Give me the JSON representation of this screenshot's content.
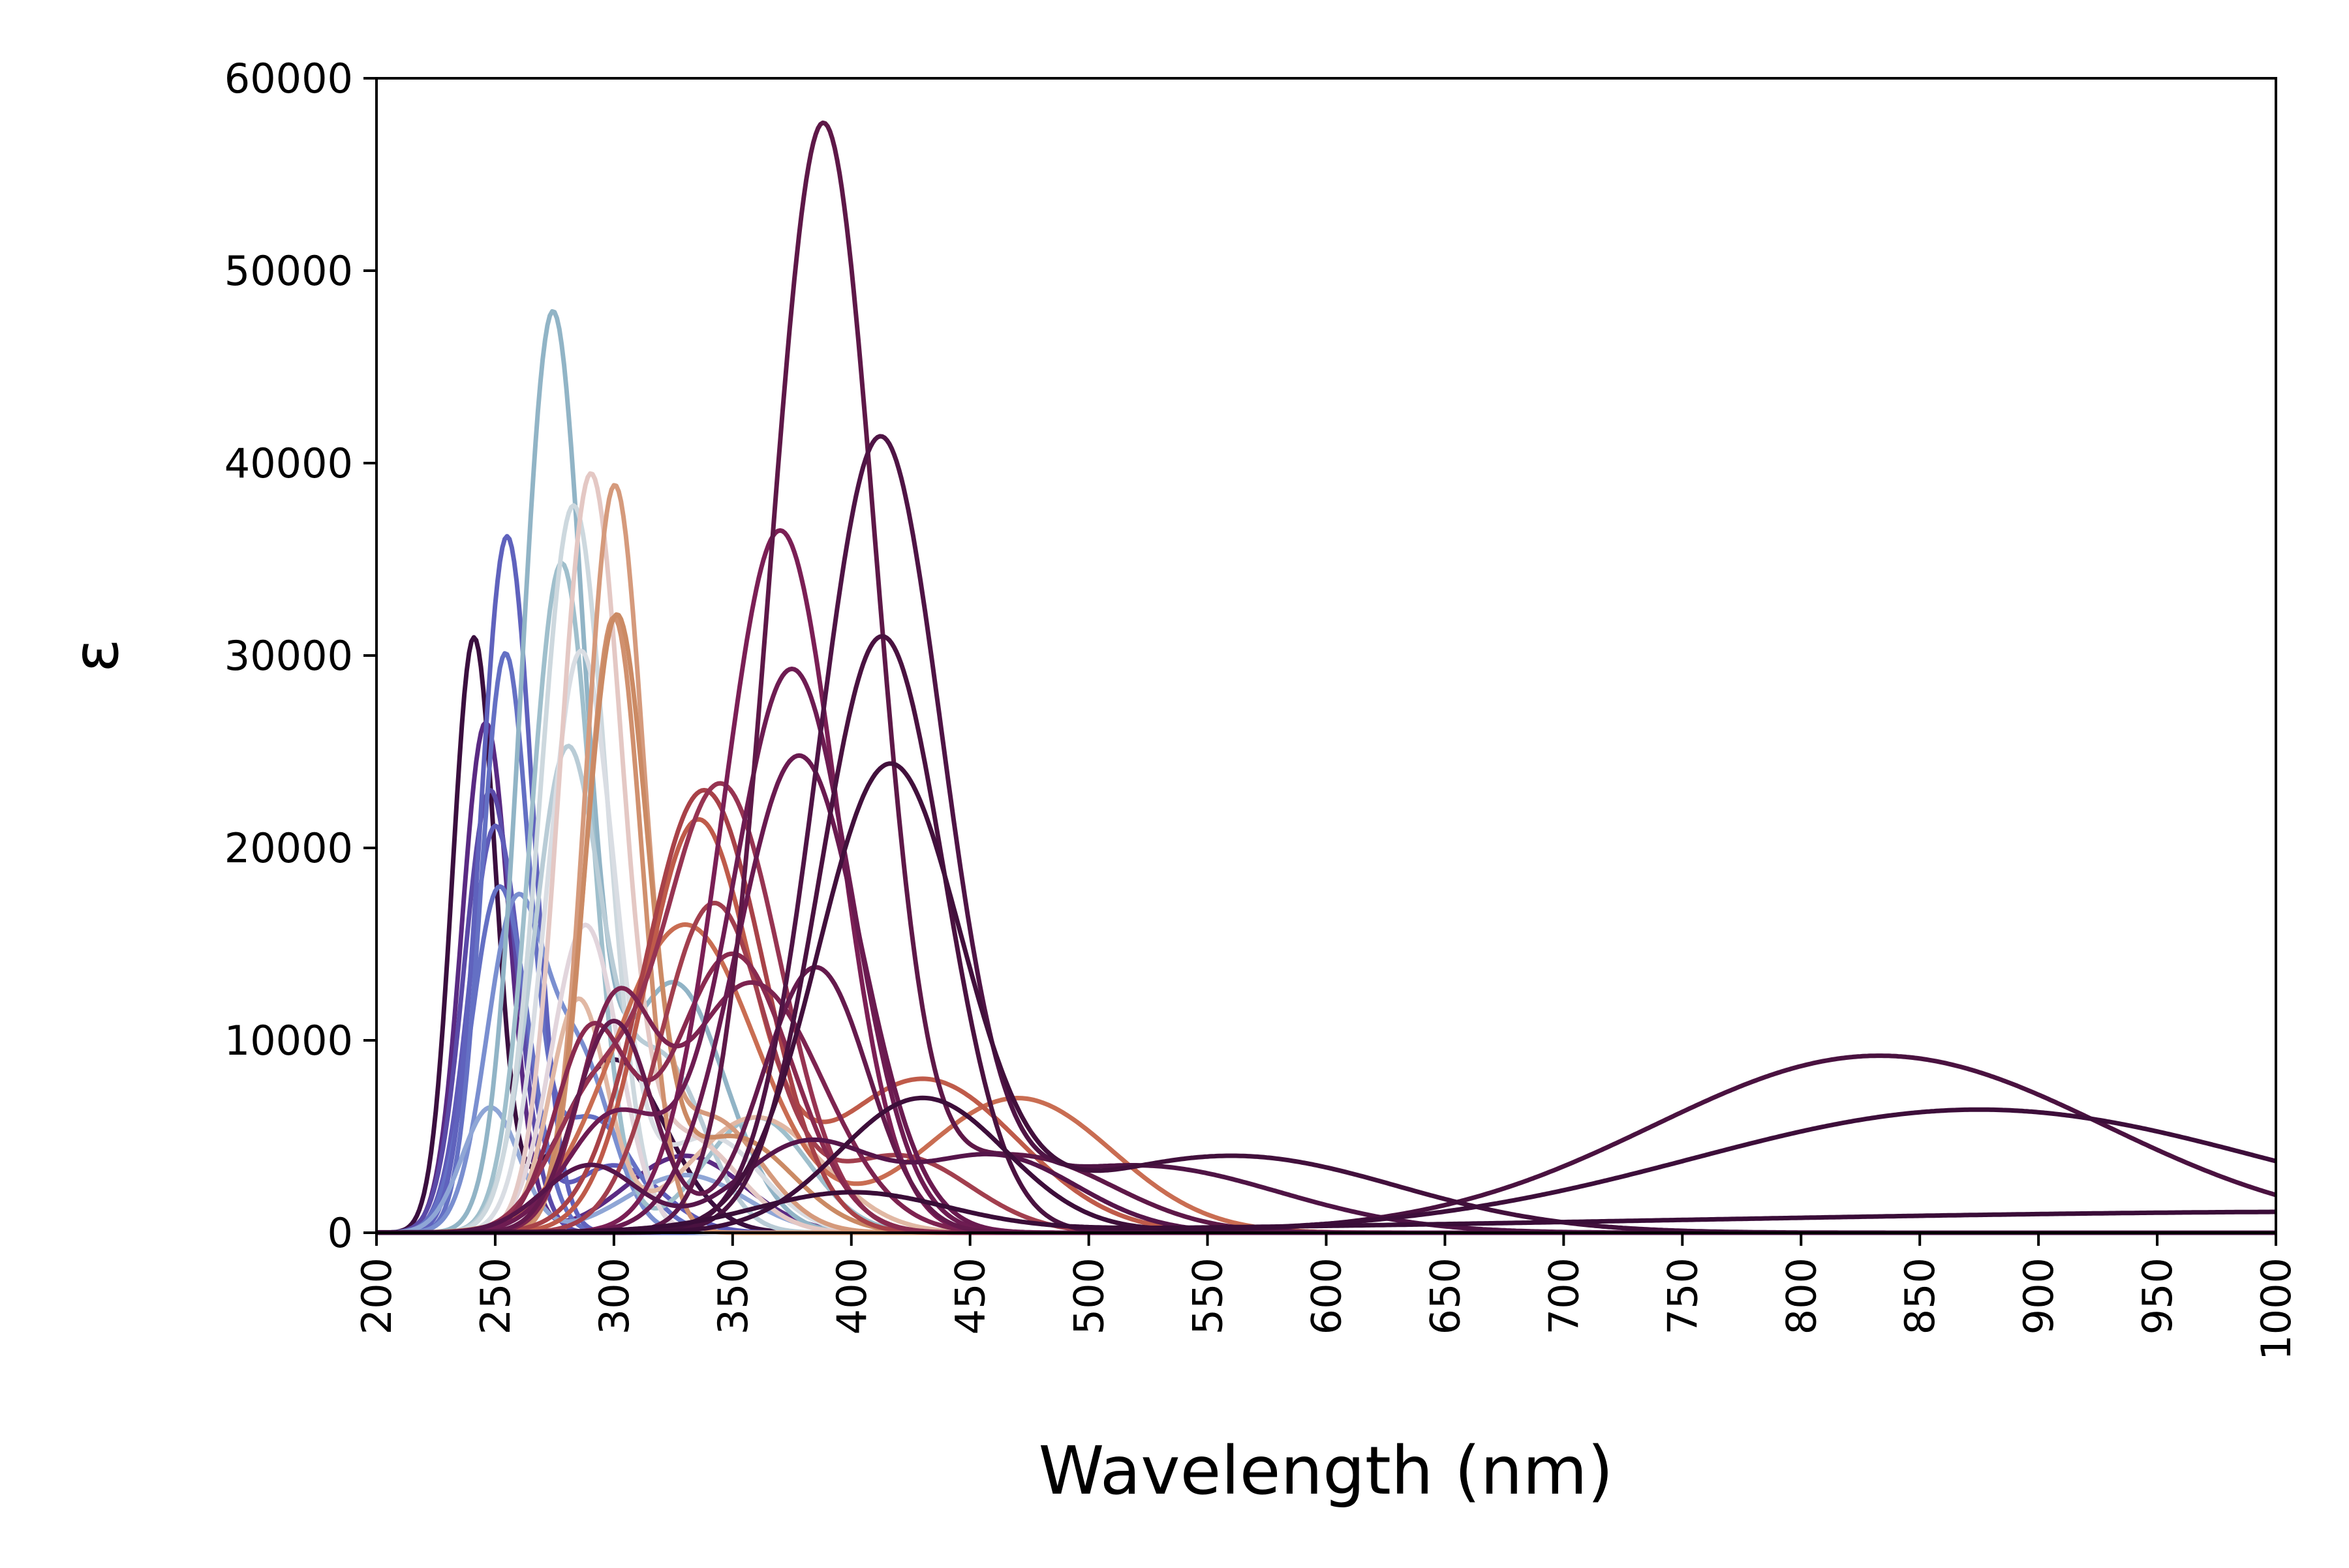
{
  "chart_data": {
    "type": "line",
    "title": "",
    "xlabel": "Wavelength (nm)",
    "ylabel": "ε",
    "xlim": [
      200,
      1000
    ],
    "ylim": [
      0,
      60000
    ],
    "x_ticks": [
      "200",
      "250",
      "300",
      "350",
      "400",
      "450",
      "500",
      "550",
      "600",
      "650",
      "700",
      "750",
      "800",
      "850",
      "900",
      "950",
      "1000"
    ],
    "y_ticks": [
      "0",
      "10000",
      "20000",
      "30000",
      "40000",
      "50000",
      "60000"
    ],
    "grid": false,
    "legend": "none",
    "curve_model": "sum of gaussian bands; each band = [center_nm, height_epsilon, width_nm]",
    "series": [
      {
        "color": "#3b0f3f",
        "bands": [
          [
            241,
            30700,
            9
          ],
          [
            300,
            9000,
            22
          ]
        ]
      },
      {
        "color": "#5a2a83",
        "bands": [
          [
            246,
            26500,
            10
          ],
          [
            330,
            4000,
            25
          ]
        ]
      },
      {
        "color": "#5b4aa8",
        "bands": [
          [
            248,
            23000,
            11
          ]
        ]
      },
      {
        "color": "#5f5bb9",
        "bands": [
          [
            250,
            21000,
            11
          ],
          [
            300,
            3500,
            20
          ]
        ]
      },
      {
        "color": "#6470c4",
        "bands": [
          [
            252,
            18000,
            12
          ]
        ]
      },
      {
        "color": "#6470c4",
        "bands": [
          [
            254,
            29300,
            10
          ],
          [
            290,
            6000,
            18
          ]
        ]
      },
      {
        "color": "#5f62bd",
        "bands": [
          [
            255,
            36200,
            11
          ]
        ]
      },
      {
        "color": "#7a8fd0",
        "bands": [
          [
            258,
            16000,
            12
          ],
          [
            285,
            9000,
            14
          ]
        ]
      },
      {
        "color": "#8fa6d6",
        "bands": [
          [
            248,
            6500,
            12
          ],
          [
            330,
            3000,
            25
          ]
        ]
      },
      {
        "color": "#91b4c6",
        "bands": [
          [
            274,
            47000,
            13
          ],
          [
            325,
            13000,
            22
          ]
        ]
      },
      {
        "color": "#9fbfcc",
        "bands": [
          [
            278,
            34800,
            13
          ],
          [
            360,
            6000,
            22
          ]
        ]
      },
      {
        "color": "#b9ccd6",
        "bands": [
          [
            280,
            24500,
            14
          ],
          [
            320,
            9000,
            18
          ]
        ]
      },
      {
        "color": "#cdd8de",
        "bands": [
          [
            283,
            37800,
            14
          ]
        ]
      },
      {
        "color": "#d9dde3",
        "bands": [
          [
            286,
            30000,
            14
          ],
          [
            340,
            5000,
            22
          ]
        ]
      },
      {
        "color": "#e2d5dc",
        "bands": [
          [
            288,
            16000,
            14
          ]
        ]
      },
      {
        "color": "#e4c8c4",
        "bands": [
          [
            290,
            38500,
            13
          ],
          [
            330,
            5000,
            22
          ]
        ]
      },
      {
        "color": "#e1b8a4",
        "bands": [
          [
            285,
            12000,
            12
          ],
          [
            360,
            6000,
            28
          ]
        ]
      },
      {
        "color": "#d59a7c",
        "bands": [
          [
            300,
            37700,
            12
          ],
          [
            340,
            6000,
            22
          ]
        ]
      },
      {
        "color": "#d0906e",
        "bands": [
          [
            300,
            32000,
            12
          ]
        ]
      },
      {
        "color": "#cb8a64",
        "bands": [
          [
            301,
            31400,
            13
          ],
          [
            350,
            5000,
            25
          ]
        ]
      },
      {
        "color": "#c96d52",
        "bands": [
          [
            330,
            16000,
            30
          ],
          [
            470,
            7000,
            40
          ]
        ]
      },
      {
        "color": "#bf5b4a",
        "bands": [
          [
            335,
            21000,
            22
          ],
          [
            430,
            8000,
            40
          ]
        ]
      },
      {
        "color": "#a84248",
        "bands": [
          [
            338,
            23000,
            25
          ]
        ]
      },
      {
        "color": "#a23f4e",
        "bands": [
          [
            342,
            17000,
            22
          ],
          [
            420,
            4000,
            30
          ]
        ]
      },
      {
        "color": "#973452",
        "bands": [
          [
            345,
            23300,
            25
          ],
          [
            290,
            6000,
            18
          ]
        ]
      },
      {
        "color": "#8a2a4f",
        "bands": [
          [
            350,
            14500,
            25
          ],
          [
            290,
            10000,
            15
          ]
        ]
      },
      {
        "color": "#7d2350",
        "bands": [
          [
            358,
            13000,
            30
          ],
          [
            300,
            10500,
            15
          ]
        ]
      },
      {
        "color": "#7b1f55",
        "bands": [
          [
            370,
            36500,
            24
          ]
        ]
      },
      {
        "color": "#6e1c52",
        "bands": [
          [
            375,
            29300,
            25
          ],
          [
            300,
            6000,
            20
          ]
        ]
      },
      {
        "color": "#6a1a50",
        "bands": [
          [
            378,
            24800,
            26
          ]
        ]
      },
      {
        "color": "#651a4d",
        "bands": [
          [
            385,
            13800,
            22
          ],
          [
            300,
            11000,
            16
          ]
        ]
      },
      {
        "color": "#5e1848",
        "bands": [
          [
            388,
            57200,
            22
          ],
          [
            470,
            4000,
            40
          ]
        ]
      },
      {
        "color": "#56154a",
        "bands": [
          [
            380,
            4500,
            28
          ],
          [
            460,
            4000,
            35
          ],
          [
            290,
            3500,
            20
          ]
        ]
      },
      {
        "color": "#4f1445",
        "bands": [
          [
            412,
            40700,
            26
          ],
          [
            520,
            3500,
            60
          ]
        ]
      },
      {
        "color": "#4a1240",
        "bands": [
          [
            413,
            31000,
            26
          ],
          [
            833,
            9200,
            95
          ]
        ]
      },
      {
        "color": "#42103c",
        "bands": [
          [
            416,
            23900,
            30
          ],
          [
            560,
            4000,
            70
          ]
        ]
      },
      {
        "color": "#3d0e3a",
        "bands": [
          [
            430,
            7000,
            35
          ],
          [
            875,
            6400,
            120
          ]
        ]
      },
      {
        "color": "#3a0d38",
        "bands": [
          [
            400,
            2000,
            40
          ],
          [
            1050,
            1100,
            300
          ]
        ]
      }
    ]
  }
}
